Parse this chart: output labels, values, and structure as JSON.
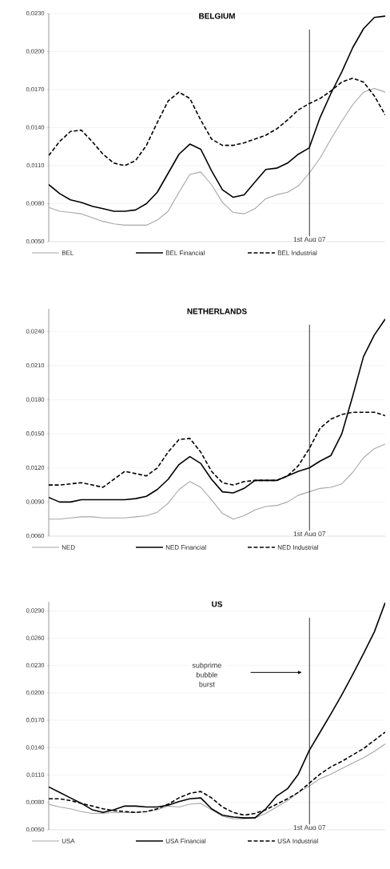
{
  "chart_data": [
    {
      "type": "line",
      "title": "BELGIUM",
      "categories": [
        null,
        null,
        null,
        null,
        null,
        null,
        null,
        null,
        null,
        null,
        null,
        null,
        null,
        null,
        null,
        null,
        null,
        null,
        null,
        null,
        null,
        null,
        null,
        null,
        null,
        null,
        null,
        null,
        null,
        null,
        null,
        null
      ],
      "series": [
        {
          "name": "BEL",
          "color": "#a6a6a6",
          "line_style": "solid",
          "values": [
            0.0077,
            0.0074,
            0.0073,
            0.0072,
            0.0069,
            0.0066,
            0.0064,
            0.0063,
            0.0063,
            0.0063,
            0.0067,
            0.0074,
            0.0089,
            0.0103,
            0.0105,
            0.0095,
            0.0081,
            0.0073,
            0.0072,
            0.0076,
            0.0084,
            0.0087,
            0.0089,
            0.0094,
            0.0104,
            0.0116,
            0.0131,
            0.0145,
            0.0158,
            0.0168,
            0.0171,
            0.0168
          ]
        },
        {
          "name": "BEL Financial",
          "color": "#000000",
          "line_style": "solid",
          "values": [
            0.0095,
            0.0088,
            0.0083,
            0.0081,
            0.0078,
            0.0076,
            0.0074,
            0.0074,
            0.0075,
            0.008,
            0.0089,
            0.0104,
            0.0119,
            0.0127,
            0.0123,
            0.0106,
            0.0091,
            0.0085,
            0.0087,
            0.0097,
            0.0107,
            0.0108,
            0.0112,
            0.0119,
            0.0124,
            0.0148,
            0.0167,
            0.0184,
            0.0203,
            0.0218,
            0.0227,
            0.0228
          ]
        },
        {
          "name": "BEL Industrial",
          "color": "#000000",
          "line_style": "dashed",
          "values": [
            0.0118,
            0.0129,
            0.0137,
            0.0138,
            0.0129,
            0.0119,
            0.0112,
            0.011,
            0.0114,
            0.0126,
            0.0144,
            0.0161,
            0.0168,
            0.0163,
            0.0146,
            0.0131,
            0.0126,
            0.0126,
            0.0128,
            0.0131,
            0.0134,
            0.0139,
            0.0146,
            0.0154,
            0.0159,
            0.0163,
            0.0169,
            0.0176,
            0.0179,
            0.0176,
            0.0165,
            0.015
          ]
        }
      ],
      "ylim": [
        0.005,
        0.023
      ],
      "yticks": [
        {
          "value": 0.005,
          "label": "0,0050"
        },
        {
          "value": 0.008,
          "label": "0,0080"
        },
        {
          "value": 0.011,
          "label": "0,0110"
        },
        {
          "value": 0.014,
          "label": "0,0140"
        },
        {
          "value": 0.017,
          "label": "0,0170"
        },
        {
          "value": 0.02,
          "label": "0,0200"
        },
        {
          "value": 0.023,
          "label": "0,0230"
        }
      ],
      "grid": "y",
      "legend": "bottom",
      "tick_labels": "y",
      "annotations": [
        "1st Aug 07"
      ]
    },
    {
      "type": "line",
      "title": "NETHERLANDS",
      "categories": [
        null,
        null,
        null,
        null,
        null,
        null,
        null,
        null,
        null,
        null,
        null,
        null,
        null,
        null,
        null,
        null,
        null,
        null,
        null,
        null,
        null,
        null,
        null,
        null,
        null,
        null,
        null,
        null,
        null,
        null,
        null,
        null
      ],
      "series": [
        {
          "name": "NED",
          "color": "#a6a6a6",
          "line_style": "solid",
          "values": [
            0.0075,
            0.0075,
            0.0076,
            0.0077,
            0.0077,
            0.0076,
            0.0076,
            0.0076,
            0.0077,
            0.0078,
            0.0081,
            0.0089,
            0.0101,
            0.0108,
            0.0103,
            0.0092,
            0.008,
            0.0075,
            0.0078,
            0.0083,
            0.0086,
            0.0087,
            0.009,
            0.0096,
            0.0099,
            0.0102,
            0.0103,
            0.0106,
            0.0116,
            0.0129,
            0.0137,
            0.0141
          ]
        },
        {
          "name": "NED Financial",
          "color": "#000000",
          "line_style": "solid",
          "values": [
            0.0094,
            0.009,
            0.009,
            0.0092,
            0.0092,
            0.0092,
            0.0092,
            0.0092,
            0.0093,
            0.0095,
            0.0101,
            0.011,
            0.0123,
            0.013,
            0.0124,
            0.011,
            0.0099,
            0.0098,
            0.0102,
            0.0109,
            0.0109,
            0.0109,
            0.0113,
            0.0117,
            0.012,
            0.0126,
            0.0131,
            0.015,
            0.0183,
            0.0218,
            0.0237,
            0.0251
          ]
        },
        {
          "name": "NED Industrial",
          "color": "#000000",
          "line_style": "dashed",
          "values": [
            0.0105,
            0.0105,
            0.0106,
            0.0107,
            0.0105,
            0.0103,
            0.011,
            0.0117,
            0.0115,
            0.0113,
            0.012,
            0.0134,
            0.0145,
            0.0146,
            0.0134,
            0.0117,
            0.0107,
            0.0105,
            0.0108,
            0.0109,
            0.0109,
            0.0109,
            0.0113,
            0.0122,
            0.0137,
            0.0155,
            0.0163,
            0.0167,
            0.0169,
            0.0169,
            0.0169,
            0.0166
          ]
        }
      ],
      "ylim": [
        0.006,
        0.026
      ],
      "yticks": [
        {
          "value": 0.006,
          "label": "0,0060"
        },
        {
          "value": 0.009,
          "label": "0,0090"
        },
        {
          "value": 0.012,
          "label": "0,0120"
        },
        {
          "value": 0.015,
          "label": "0,0150"
        },
        {
          "value": 0.018,
          "label": "0,0180"
        },
        {
          "value": 0.021,
          "label": "0,0210"
        },
        {
          "value": 0.024,
          "label": "0,0240"
        }
      ],
      "grid": "y",
      "legend": "bottom",
      "tick_labels": "y",
      "annotations": [
        "1st Aug 07"
      ]
    },
    {
      "type": "line",
      "title": "US",
      "categories": [
        null,
        null,
        null,
        null,
        null,
        null,
        null,
        null,
        null,
        null,
        null,
        null,
        null,
        null,
        null,
        null,
        null,
        null,
        null,
        null,
        null,
        null,
        null,
        null,
        null,
        null,
        null,
        null,
        null,
        null,
        null,
        null
      ],
      "series": [
        {
          "name": "USA",
          "color": "#a6a6a6",
          "line_style": "solid",
          "values": [
            0.0078,
            0.0075,
            0.0073,
            0.007,
            0.0068,
            0.0068,
            0.0069,
            0.0069,
            0.0069,
            0.007,
            0.0072,
            0.0076,
            0.0075,
            0.0078,
            0.0079,
            0.0072,
            0.0065,
            0.0062,
            0.0062,
            0.0063,
            0.0068,
            0.0075,
            0.0082,
            0.0091,
            0.0098,
            0.0106,
            0.0111,
            0.0117,
            0.0123,
            0.0129,
            0.0136,
            0.0144
          ]
        },
        {
          "name": "USA Financial",
          "color": "#000000",
          "line_style": "solid",
          "values": [
            0.0097,
            0.0091,
            0.0085,
            0.0079,
            0.0072,
            0.0069,
            0.0072,
            0.0076,
            0.0076,
            0.0075,
            0.0075,
            0.0077,
            0.0081,
            0.0084,
            0.0085,
            0.0073,
            0.0066,
            0.0064,
            0.0063,
            0.0063,
            0.0073,
            0.0087,
            0.0095,
            0.0111,
            0.0137,
            0.0157,
            0.0177,
            0.0198,
            0.022,
            0.0243,
            0.0267,
            0.0299
          ]
        },
        {
          "name": "USA Industrial",
          "color": "#000000",
          "line_style": "dashed",
          "values": [
            0.0084,
            0.0084,
            0.0082,
            0.0079,
            0.0076,
            0.0073,
            0.0071,
            0.007,
            0.0069,
            0.007,
            0.0073,
            0.0078,
            0.0085,
            0.009,
            0.0092,
            0.0085,
            0.0075,
            0.0069,
            0.0066,
            0.0068,
            0.0072,
            0.0078,
            0.0084,
            0.0091,
            0.0101,
            0.0111,
            0.0119,
            0.0125,
            0.0132,
            0.0139,
            0.0148,
            0.0157
          ]
        }
      ],
      "ylim": [
        0.005,
        0.03
      ],
      "yticks": [
        {
          "value": 0.005,
          "label": "0,0050"
        },
        {
          "value": 0.008,
          "label": "0,0080"
        },
        {
          "value": 0.011,
          "label": "0,0110"
        },
        {
          "value": 0.014,
          "label": "0,0140"
        },
        {
          "value": 0.017,
          "label": "0,0170"
        },
        {
          "value": 0.02,
          "label": "0,0200"
        },
        {
          "value": 0.023,
          "label": "0,0230"
        },
        {
          "value": 0.026,
          "label": "0,0260"
        },
        {
          "value": 0.029,
          "label": "0,0290"
        }
      ],
      "grid": "y",
      "legend": "bottom",
      "tick_labels": "y",
      "annotations": [
        "1st Aug 07",
        "subprime bubble burst"
      ]
    }
  ]
}
